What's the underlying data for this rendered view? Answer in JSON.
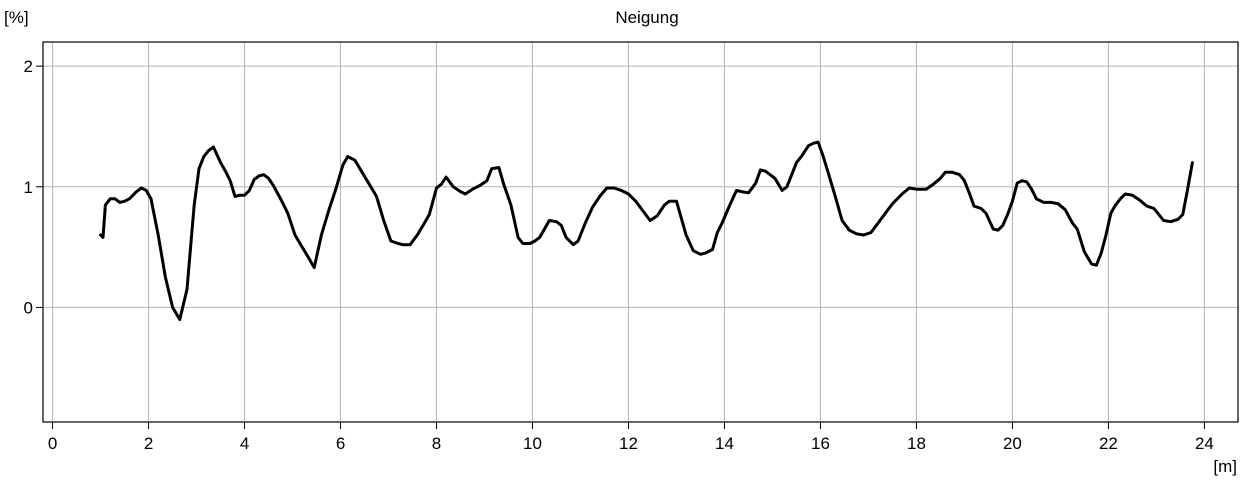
{
  "chart_data": {
    "type": "line",
    "title": "Neigung",
    "xlabel": "[m]",
    "ylabel": "[%]",
    "xlim": [
      -0.2,
      24.7
    ],
    "ylim": [
      -0.95,
      2.2
    ],
    "xticks": [
      0,
      2,
      4,
      6,
      8,
      10,
      12,
      14,
      16,
      18,
      20,
      22,
      24
    ],
    "yticks": [
      0,
      1,
      2
    ],
    "grid": true,
    "legend": "none",
    "line_color": "#000000",
    "grid_color": "#b4b4b4",
    "series": [
      {
        "x": [
          1.0,
          1.05,
          1.1,
          1.2,
          1.3,
          1.4,
          1.5,
          1.6,
          1.75,
          1.85,
          1.95,
          2.05,
          2.2,
          2.35,
          2.5,
          2.65,
          2.8,
          2.95,
          3.05,
          3.15,
          3.25,
          3.35,
          3.5,
          3.6,
          3.7,
          3.8,
          3.9,
          4.0,
          4.1,
          4.2,
          4.3,
          4.4,
          4.5,
          4.6,
          4.75,
          4.9,
          5.05,
          5.2,
          5.35,
          5.45,
          5.6,
          5.75,
          5.9,
          6.05,
          6.15,
          6.3,
          6.45,
          6.6,
          6.75,
          6.9,
          7.05,
          7.2,
          7.3,
          7.45,
          7.6,
          7.75,
          7.85,
          8.0,
          8.1,
          8.2,
          8.35,
          8.5,
          8.6,
          8.75,
          8.9,
          9.05,
          9.15,
          9.3,
          9.4,
          9.55,
          9.7,
          9.8,
          9.95,
          10.05,
          10.15,
          10.25,
          10.35,
          10.5,
          10.6,
          10.7,
          10.85,
          10.95,
          11.1,
          11.25,
          11.4,
          11.55,
          11.7,
          11.85,
          12.0,
          12.15,
          12.3,
          12.45,
          12.6,
          12.75,
          12.85,
          13.0,
          13.1,
          13.2,
          13.35,
          13.5,
          13.6,
          13.75,
          13.85,
          13.95,
          14.1,
          14.25,
          14.35,
          14.5,
          14.65,
          14.75,
          14.85,
          14.95,
          15.05,
          15.2,
          15.3,
          15.4,
          15.5,
          15.6,
          15.75,
          15.85,
          15.95,
          16.05,
          16.15,
          16.3,
          16.45,
          16.6,
          16.75,
          16.9,
          17.05,
          17.2,
          17.35,
          17.5,
          17.7,
          17.85,
          18.0,
          18.2,
          18.35,
          18.5,
          18.6,
          18.75,
          18.9,
          19.0,
          19.1,
          19.2,
          19.35,
          19.45,
          19.6,
          19.7,
          19.8,
          19.9,
          20.0,
          20.1,
          20.2,
          20.3,
          20.4,
          20.5,
          20.65,
          20.8,
          20.95,
          21.1,
          21.25,
          21.35,
          21.5,
          21.65,
          21.75,
          21.85,
          21.95,
          22.05,
          22.15,
          22.25,
          22.35,
          22.5,
          22.65,
          22.8,
          22.95,
          23.05,
          23.15,
          23.3,
          23.45,
          23.55,
          23.65,
          23.75
        ],
        "y": [
          0.6,
          0.58,
          0.85,
          0.9,
          0.9,
          0.87,
          0.88,
          0.9,
          0.96,
          0.99,
          0.97,
          0.9,
          0.6,
          0.25,
          0.0,
          -0.1,
          0.15,
          0.85,
          1.15,
          1.25,
          1.3,
          1.33,
          1.2,
          1.13,
          1.05,
          0.92,
          0.93,
          0.93,
          0.97,
          1.06,
          1.09,
          1.1,
          1.07,
          1.01,
          0.9,
          0.78,
          0.6,
          0.5,
          0.4,
          0.33,
          0.6,
          0.8,
          0.98,
          1.18,
          1.25,
          1.22,
          1.12,
          1.02,
          0.92,
          0.72,
          0.55,
          0.53,
          0.52,
          0.52,
          0.6,
          0.7,
          0.77,
          0.99,
          1.02,
          1.08,
          1.0,
          0.96,
          0.94,
          0.98,
          1.01,
          1.05,
          1.15,
          1.16,
          1.02,
          0.85,
          0.58,
          0.53,
          0.53,
          0.55,
          0.58,
          0.65,
          0.72,
          0.71,
          0.68,
          0.58,
          0.52,
          0.55,
          0.7,
          0.83,
          0.92,
          0.99,
          0.99,
          0.97,
          0.94,
          0.88,
          0.8,
          0.72,
          0.76,
          0.85,
          0.88,
          0.88,
          0.74,
          0.6,
          0.47,
          0.44,
          0.45,
          0.48,
          0.62,
          0.7,
          0.84,
          0.97,
          0.96,
          0.95,
          1.03,
          1.14,
          1.13,
          1.1,
          1.07,
          0.97,
          1.0,
          1.1,
          1.2,
          1.25,
          1.34,
          1.36,
          1.37,
          1.26,
          1.13,
          0.93,
          0.72,
          0.64,
          0.61,
          0.6,
          0.62,
          0.7,
          0.78,
          0.86,
          0.94,
          0.99,
          0.98,
          0.98,
          1.02,
          1.07,
          1.12,
          1.12,
          1.1,
          1.05,
          0.95,
          0.84,
          0.82,
          0.78,
          0.65,
          0.64,
          0.68,
          0.77,
          0.88,
          1.03,
          1.05,
          1.04,
          0.98,
          0.9,
          0.87,
          0.87,
          0.86,
          0.81,
          0.7,
          0.65,
          0.46,
          0.36,
          0.35,
          0.45,
          0.6,
          0.78,
          0.85,
          0.9,
          0.94,
          0.93,
          0.89,
          0.84,
          0.82,
          0.77,
          0.72,
          0.71,
          0.73,
          0.77,
          0.98,
          1.2
        ]
      }
    ]
  }
}
